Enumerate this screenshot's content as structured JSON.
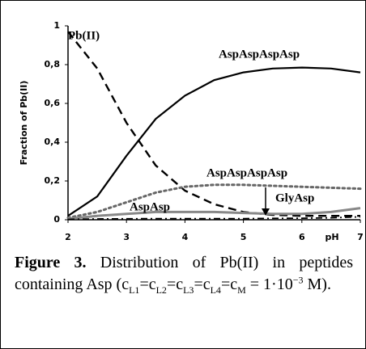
{
  "chart_data": {
    "type": "line",
    "ylabel": "Fraction of Pb(II)",
    "xlabel": "pH",
    "x": [
      2,
      2.5,
      3,
      3.5,
      4,
      4.5,
      5,
      5.5,
      6,
      6.5,
      7
    ],
    "xlim": [
      2,
      7
    ],
    "xticks": [
      2,
      3,
      4,
      5,
      6,
      7
    ],
    "ylim": [
      0,
      1
    ],
    "yticks": [
      0,
      {
        "value": 0.2,
        "label": "0,2"
      },
      {
        "value": 0.4,
        "label": "0,4"
      },
      {
        "value": 0.6,
        "label": "0,6"
      },
      {
        "value": 0.8,
        "label": "0,8"
      },
      1
    ],
    "series": [
      {
        "name": "Pb(II)",
        "color": "#000000",
        "style": "dashed",
        "values": [
          0.97,
          0.78,
          0.5,
          0.28,
          0.15,
          0.08,
          0.04,
          0.025,
          0.02,
          0.02,
          0.02
        ]
      },
      {
        "name": "AspAspAspAsp",
        "color": "#000000",
        "style": "solid",
        "values": [
          0.02,
          0.12,
          0.33,
          0.52,
          0.64,
          0.72,
          0.76,
          0.78,
          0.785,
          0.78,
          0.76
        ]
      },
      {
        "name": "AspAspAspAsp",
        "color": "#666666",
        "style": "dotted",
        "values": [
          0.01,
          0.04,
          0.09,
          0.14,
          0.17,
          0.18,
          0.18,
          0.175,
          0.17,
          0.165,
          0.16
        ]
      },
      {
        "name": "AspAsp",
        "color": "#888888",
        "style": "solid",
        "values": [
          0.005,
          0.02,
          0.03,
          0.04,
          0.04,
          0.04,
          0.035,
          0.03,
          0.03,
          0.04,
          0.06
        ]
      },
      {
        "name": "GlyAsp",
        "color": "#000000",
        "style": "dashdot",
        "values": [
          0.002,
          0.004,
          0.005,
          0.006,
          0.006,
          0.006,
          0.006,
          0.007,
          0.008,
          0.01,
          0.015
        ]
      }
    ]
  },
  "caption": {
    "label": "Figure 3.",
    "text": "Distribution of Pb(II) in peptides containing Asp",
    "formula": [
      "(c",
      "L1",
      "=c",
      "L2",
      "=c",
      "L3",
      "=c",
      "L4",
      "=c",
      "M",
      " = 1·10",
      "−3",
      " M)."
    ]
  }
}
